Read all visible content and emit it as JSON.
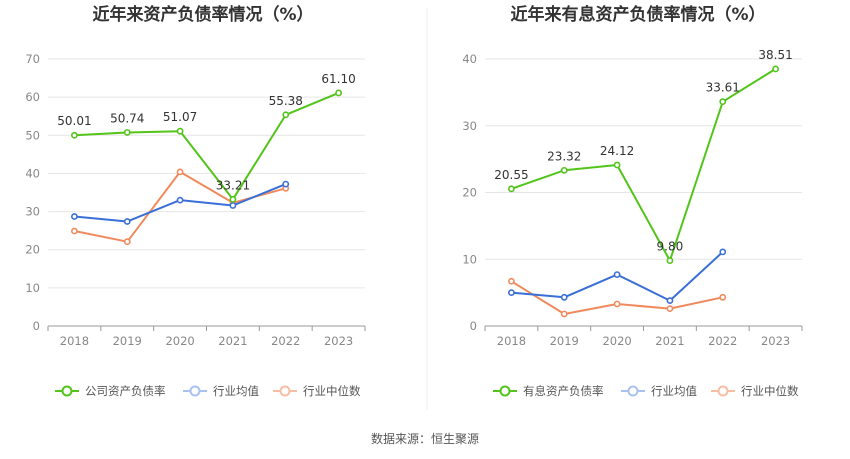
{
  "source_text": "数据来源：恒生聚源",
  "chart_data": [
    {
      "type": "line",
      "title": "近年来资产负债率情况（%）",
      "categories": [
        "2018",
        "2019",
        "2020",
        "2021",
        "2022",
        "2023"
      ],
      "ylim": [
        0,
        70
      ],
      "yticks": [
        0,
        10,
        20,
        30,
        40,
        50,
        60,
        70
      ],
      "grid": true,
      "legend_position": "bottom",
      "series": [
        {
          "name": "公司资产负债率",
          "color": "#52c41a",
          "values": [
            50.01,
            50.74,
            51.07,
            33.21,
            55.38,
            61.1
          ],
          "labels": [
            "50.01",
            "50.74",
            "51.07",
            "33.21",
            "55.38",
            "61.10"
          ]
        },
        {
          "name": "行业均值",
          "color": "#3b6fd8",
          "values": [
            28.7,
            27.4,
            33.0,
            31.6,
            37.2,
            null
          ]
        },
        {
          "name": "行业中位数",
          "color": "#f08a5d",
          "values": [
            24.9,
            22.1,
            40.4,
            32.3,
            36.1,
            null
          ]
        }
      ]
    },
    {
      "type": "line",
      "title": "近年来有息资产负债率情况（%）",
      "categories": [
        "2018",
        "2019",
        "2020",
        "2021",
        "2022",
        "2023"
      ],
      "ylim": [
        0,
        40
      ],
      "yticks": [
        0,
        10,
        20,
        30,
        40
      ],
      "grid": true,
      "legend_position": "bottom",
      "series": [
        {
          "name": "有息资产负债率",
          "color": "#52c41a",
          "values": [
            20.55,
            23.32,
            24.12,
            9.8,
            33.61,
            38.51
          ],
          "labels": [
            "20.55",
            "23.32",
            "24.12",
            "9.80",
            "33.61",
            "38.51"
          ]
        },
        {
          "name": "行业均值",
          "color": "#3b6fd8",
          "values": [
            5.0,
            4.3,
            7.7,
            3.8,
            11.1,
            null
          ]
        },
        {
          "name": "行业中位数",
          "color": "#f08a5d",
          "values": [
            6.7,
            1.8,
            3.3,
            2.6,
            4.3,
            null
          ]
        }
      ]
    }
  ]
}
